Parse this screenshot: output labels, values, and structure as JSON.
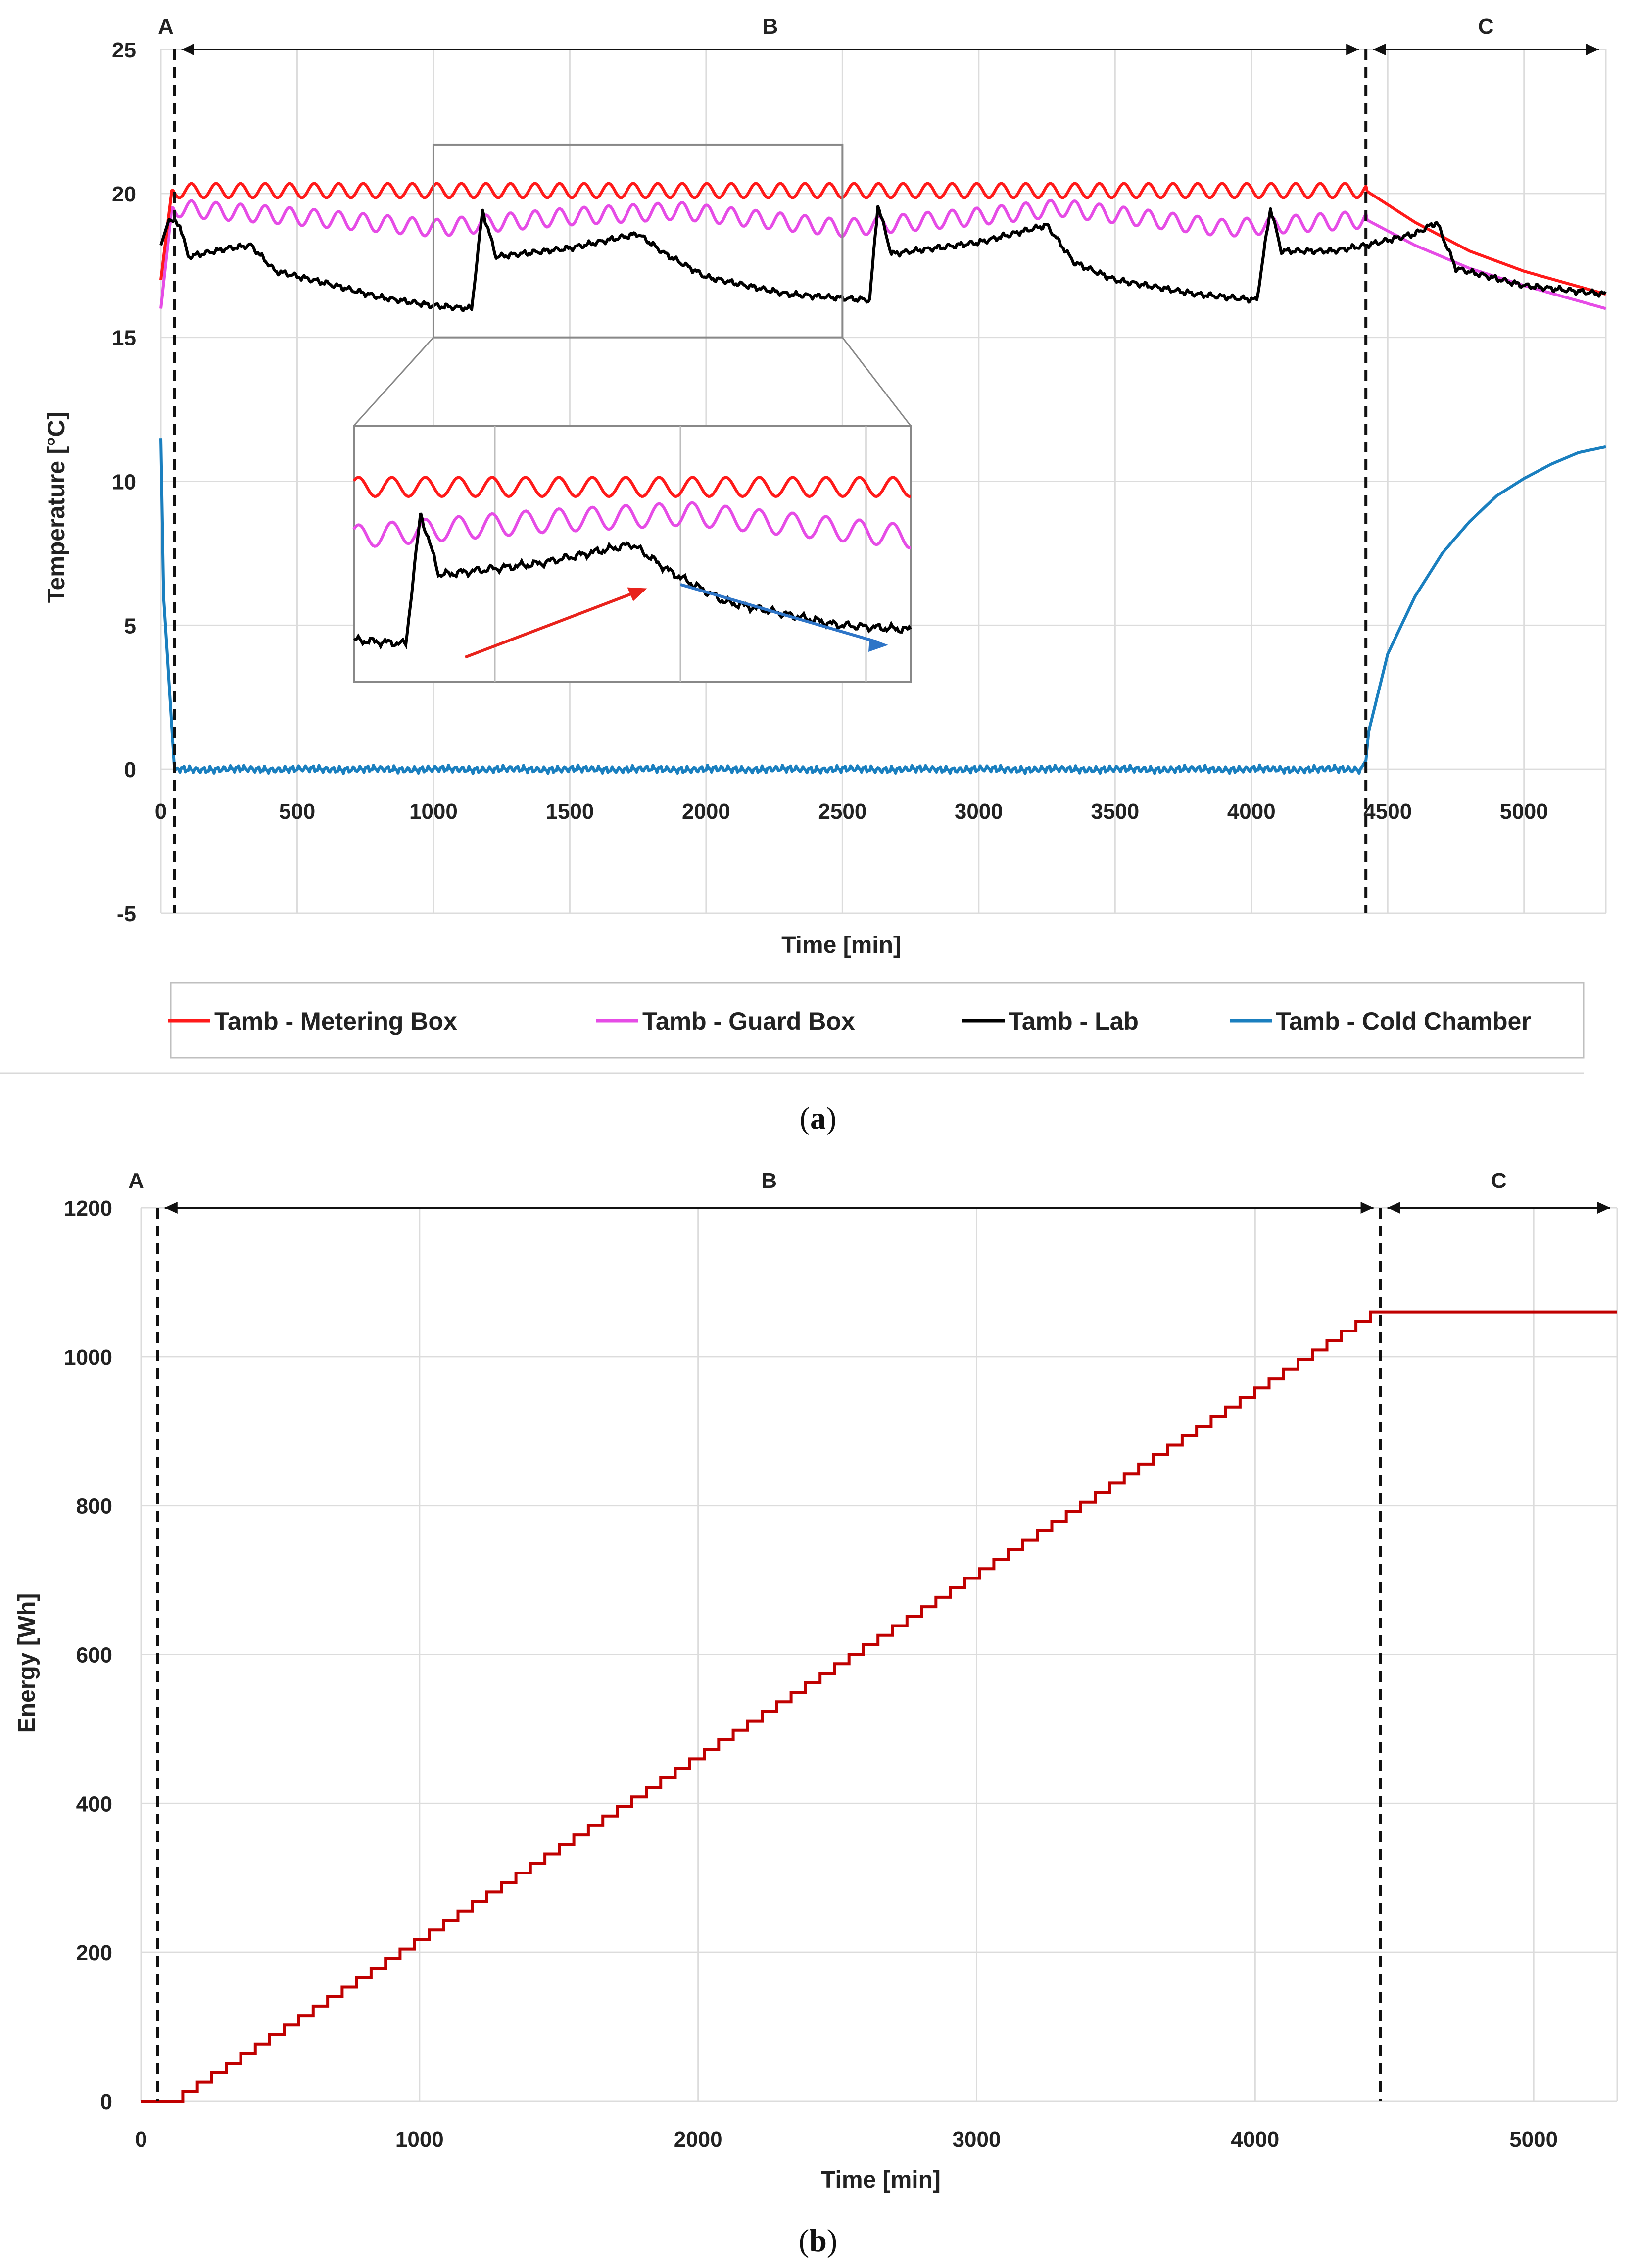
{
  "chart_data": [
    {
      "id": "a",
      "type": "line",
      "panel_label": "a",
      "xlabel": "Time [min]",
      "ylabel": "Temperature [°C]",
      "xlim": [
        0,
        5300
      ],
      "ylim": [
        -5,
        25
      ],
      "x_ticks": [
        0,
        500,
        1000,
        1500,
        2000,
        2500,
        3000,
        3500,
        4000,
        4500,
        5000
      ],
      "y_ticks": [
        -5,
        0,
        5,
        10,
        15,
        20,
        25
      ],
      "grid": true,
      "regions": [
        {
          "label": "A",
          "from": 0,
          "to": 50
        },
        {
          "label": "B",
          "from": 50,
          "to": 4420
        },
        {
          "label": "C",
          "from": 4420,
          "to": 5300
        }
      ],
      "dividers": [
        50,
        4420
      ],
      "series": [
        {
          "name": "Tamb - Metering Box",
          "color": "#ff1a1a",
          "points": [
            [
              0,
              17
            ],
            [
              40,
              20.1
            ],
            [
              4420,
              20.1
            ],
            [
              4600,
              19.0
            ],
            [
              4800,
              18.0
            ],
            [
              5000,
              17.3
            ],
            [
              5300,
              16.5
            ]
          ],
          "oscillation": {
            "amplitude": 0.25,
            "period_min": 90,
            "from": 50,
            "to": 4420
          }
        },
        {
          "name": "Tamb - Guard Box",
          "color": "#e64ce6",
          "points": [
            [
              0,
              16
            ],
            [
              40,
              19.5
            ],
            [
              500,
              19.2
            ],
            [
              1000,
              18.8
            ],
            [
              1500,
              19.2
            ],
            [
              1900,
              19.4
            ],
            [
              2500,
              18.8
            ],
            [
              3000,
              19.2
            ],
            [
              3300,
              19.5
            ],
            [
              3900,
              18.8
            ],
            [
              4420,
              19.1
            ],
            [
              4600,
              18.2
            ],
            [
              4800,
              17.4
            ],
            [
              5000,
              16.8
            ],
            [
              5300,
              16.0
            ]
          ],
          "oscillation": {
            "amplitude": 0.3,
            "period_min": 90,
            "from": 50,
            "to": 4420
          }
        },
        {
          "name": "Tamb - Lab",
          "color": "#000000",
          "points": [
            [
              0,
              18.2
            ],
            [
              30,
              19.1
            ],
            [
              70,
              18.9
            ],
            [
              100,
              17.8
            ],
            [
              250,
              18.1
            ],
            [
              330,
              18.2
            ],
            [
              420,
              17.3
            ],
            [
              600,
              16.9
            ],
            [
              800,
              16.4
            ],
            [
              1000,
              16.1
            ],
            [
              1140,
              16.0
            ],
            [
              1180,
              19.4
            ],
            [
              1230,
              17.8
            ],
            [
              1500,
              18.1
            ],
            [
              1750,
              18.6
            ],
            [
              1850,
              17.9
            ],
            [
              2000,
              17.1
            ],
            [
              2300,
              16.5
            ],
            [
              2600,
              16.3
            ],
            [
              2630,
              19.6
            ],
            [
              2680,
              17.9
            ],
            [
              3000,
              18.3
            ],
            [
              3250,
              18.9
            ],
            [
              3350,
              17.6
            ],
            [
              3500,
              17.0
            ],
            [
              3800,
              16.5
            ],
            [
              4020,
              16.3
            ],
            [
              4070,
              19.5
            ],
            [
              4110,
              18.0
            ],
            [
              4300,
              18.0
            ],
            [
              4420,
              18.2
            ],
            [
              4600,
              18.6
            ],
            [
              4680,
              19.0
            ],
            [
              4750,
              17.4
            ],
            [
              5000,
              16.8
            ],
            [
              5300,
              16.5
            ]
          ],
          "oscillation": {
            "amplitude": 0.12,
            "period_min": 40,
            "from": 50,
            "to": 5300
          }
        },
        {
          "name": "Tamb - Cold Chamber",
          "color": "#1a7fbf",
          "points": [
            [
              0,
              11.5
            ],
            [
              10,
              6.0
            ],
            [
              50,
              0.0
            ],
            [
              4400,
              0.0
            ],
            [
              4420,
              0.3
            ],
            [
              4430,
              1.3
            ],
            [
              4500,
              4.0
            ],
            [
              4600,
              6.0
            ],
            [
              4700,
              7.5
            ],
            [
              4800,
              8.6
            ],
            [
              4900,
              9.5
            ],
            [
              5000,
              10.1
            ],
            [
              5100,
              10.6
            ],
            [
              5200,
              11.0
            ],
            [
              5300,
              11.2
            ]
          ],
          "oscillation": {
            "amplitude": 0.15,
            "period_min": 25,
            "from": 60,
            "to": 4400
          }
        }
      ],
      "inset": {
        "description": "Zoom window",
        "x_range": [
          1000,
          2500
        ],
        "y_range": [
          15,
          21.7
        ],
        "annotations": [
          {
            "type": "arrow",
            "color": "#e8231c",
            "meaning": "rising"
          },
          {
            "type": "arrow",
            "color": "#2e75c7",
            "meaning": "falling"
          }
        ]
      }
    },
    {
      "id": "b",
      "type": "line",
      "panel_label": "b",
      "xlabel": "Time [min]",
      "ylabel": "Energy [Wh]",
      "xlim": [
        0,
        5300
      ],
      "ylim": [
        0,
        1200
      ],
      "x_ticks": [
        0,
        1000,
        2000,
        3000,
        4000,
        5000
      ],
      "y_ticks": [
        0,
        200,
        400,
        600,
        800,
        1000,
        1200
      ],
      "grid": true,
      "regions": [
        {
          "label": "A",
          "from": 0,
          "to": 60
        },
        {
          "label": "B",
          "from": 60,
          "to": 4450
        },
        {
          "label": "C",
          "from": 4450,
          "to": 5300
        }
      ],
      "dividers": [
        60,
        4450
      ],
      "series": [
        {
          "name": "Energy",
          "color": "#c00000",
          "staircase": {
            "start_x": 0,
            "first_step_x": 150,
            "end_x": 4450,
            "step_min": 52,
            "start_y": 0,
            "end_y": 1060
          },
          "after": [
            [
              4450,
              1060
            ],
            [
              5300,
              1060
            ]
          ]
        }
      ]
    }
  ],
  "legend": {
    "items": [
      {
        "label": "Tamb - Metering Box",
        "color": "#ff1a1a"
      },
      {
        "label": "Tamb - Guard Box",
        "color": "#e64ce6"
      },
      {
        "label": "Tamb - Lab",
        "color": "#000000"
      },
      {
        "label": "Tamb - Cold Chamber",
        "color": "#1a7fbf"
      }
    ]
  },
  "captions": {
    "a": {
      "open": "(",
      "letter": "a",
      "close": ")"
    },
    "b": {
      "open": "(",
      "letter": "b",
      "close": ")"
    }
  }
}
